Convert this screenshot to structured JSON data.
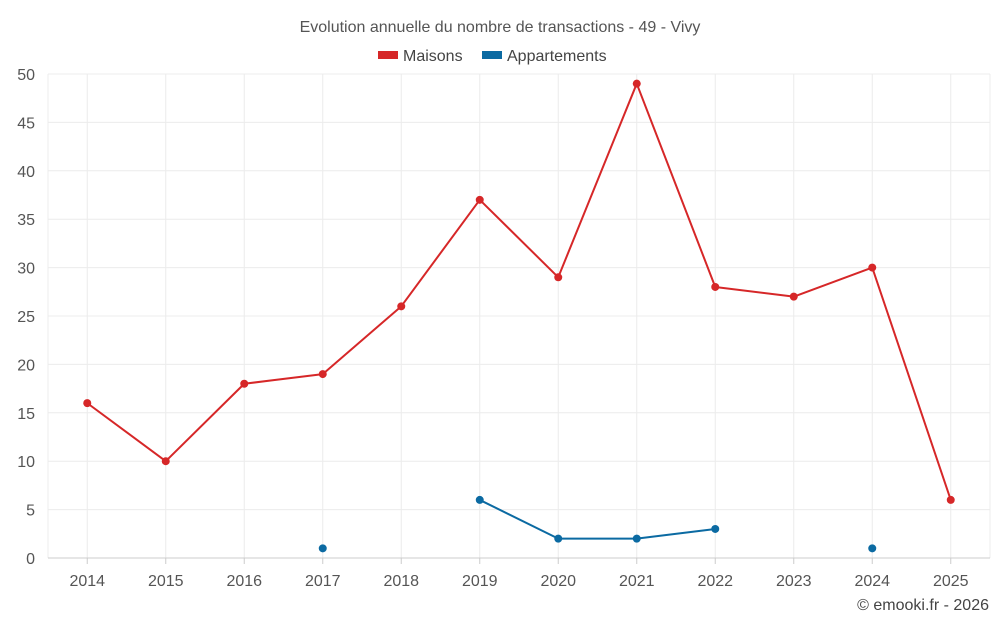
{
  "chart_data": {
    "type": "line",
    "title": "Evolution annuelle du nombre de transactions - 49 - Vivy",
    "categories": [
      "2014",
      "2015",
      "2016",
      "2017",
      "2018",
      "2019",
      "2020",
      "2021",
      "2022",
      "2023",
      "2024",
      "2025"
    ],
    "ylim": [
      0,
      50
    ],
    "yticks": [
      0,
      5,
      10,
      15,
      20,
      25,
      30,
      35,
      40,
      45,
      50
    ],
    "grid": true,
    "legend_position": "top-center",
    "series": [
      {
        "name": "Maisons",
        "color": "#d62728",
        "values": [
          16,
          10,
          18,
          19,
          26,
          37,
          29,
          49,
          28,
          27,
          30,
          6
        ]
      },
      {
        "name": "Appartements",
        "color": "#0b6aa2",
        "values": [
          null,
          null,
          null,
          1,
          null,
          6,
          2,
          2,
          3,
          null,
          1,
          null
        ]
      }
    ],
    "credit": "© emooki.fr - 2026"
  }
}
